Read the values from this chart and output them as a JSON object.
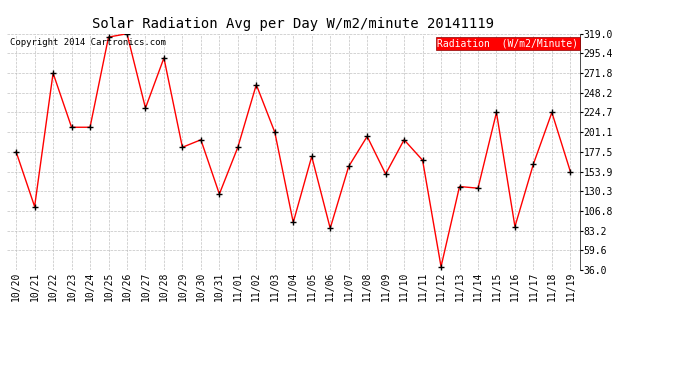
{
  "title": "Solar Radiation Avg per Day W/m2/minute 20141119",
  "copyright": "Copyright 2014 Cartronics.com",
  "legend_label": "Radiation  (W/m2/Minute)",
  "dates": [
    "10/20",
    "10/21",
    "10/22",
    "10/23",
    "10/24",
    "10/25",
    "10/26",
    "10/27",
    "10/28",
    "10/29",
    "10/30",
    "10/31",
    "11/01",
    "11/02",
    "11/03",
    "11/04",
    "11/05",
    "11/06",
    "11/07",
    "11/08",
    "11/09",
    "11/10",
    "11/11",
    "11/12",
    "11/13",
    "11/14",
    "11/15",
    "11/16",
    "11/17",
    "11/18",
    "11/19"
  ],
  "values": [
    177.5,
    112.0,
    271.8,
    207.0,
    207.0,
    315.0,
    319.0,
    230.0,
    290.0,
    183.0,
    192.0,
    127.0,
    183.0,
    258.0,
    201.1,
    93.0,
    172.0,
    86.0,
    160.0,
    196.0,
    151.0,
    192.0,
    167.5,
    40.0,
    136.0,
    134.0,
    224.7,
    88.0,
    163.0,
    224.7,
    153.9
  ],
  "ylim": [
    36.0,
    319.0
  ],
  "yticks": [
    36.0,
    59.6,
    83.2,
    106.8,
    130.3,
    153.9,
    177.5,
    201.1,
    224.7,
    248.2,
    271.8,
    295.4,
    319.0
  ],
  "line_color": "red",
  "marker": "+",
  "marker_color": "black",
  "bg_color": "#ffffff",
  "grid_color": "#bbbbbb",
  "legend_bg": "red",
  "legend_fg": "white",
  "title_fontsize": 10,
  "tick_fontsize": 7,
  "copyright_fontsize": 6.5,
  "legend_fontsize": 7
}
